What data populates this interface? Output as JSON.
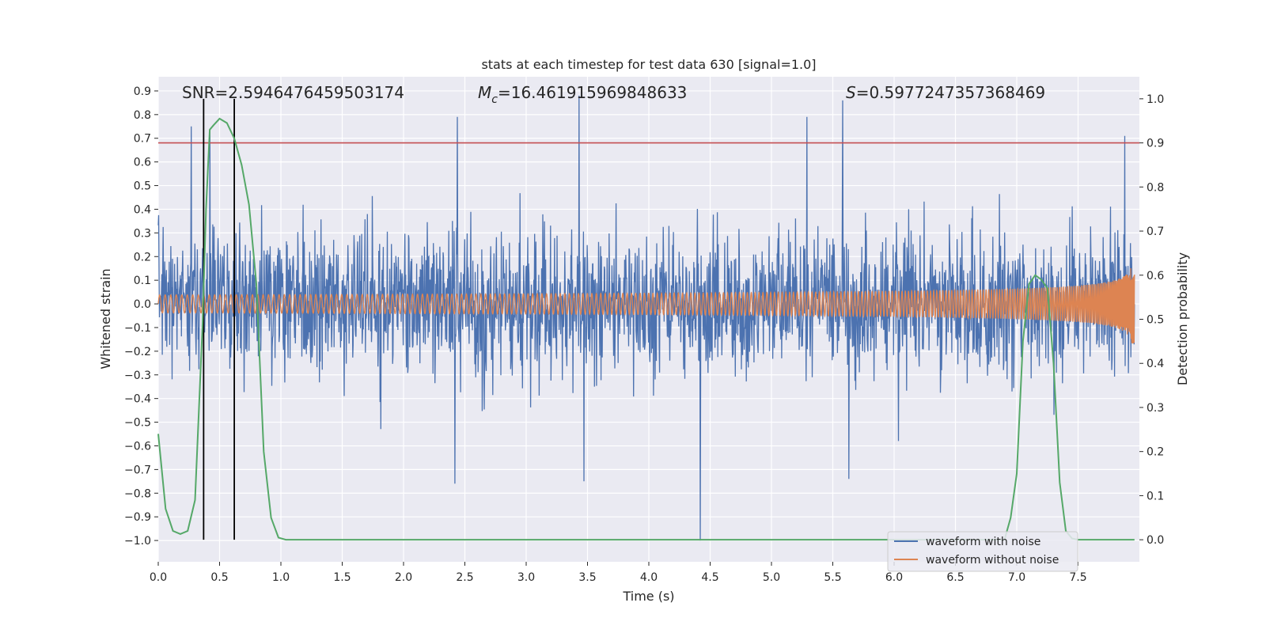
{
  "chart_data": {
    "type": "line",
    "title": "stats at each timestep for test data 630 [signal=1.0]",
    "xlabel": "Time (s)",
    "ylabel_left": "Whitened strain",
    "ylabel_right": "Detection probability",
    "xlim": [
      0.0,
      8.0
    ],
    "ylim_left": [
      -1.09,
      0.96
    ],
    "ylim_right": [
      -0.05,
      1.05
    ],
    "x_ticks": [
      0.0,
      0.5,
      1.0,
      1.5,
      2.0,
      2.5,
      3.0,
      3.5,
      4.0,
      4.5,
      5.0,
      5.5,
      6.0,
      6.5,
      7.0,
      7.5
    ],
    "x_tick_labels": [
      "0.0",
      "0.5",
      "1.0",
      "1.5",
      "2.0",
      "2.5",
      "3.0",
      "3.5",
      "4.0",
      "4.5",
      "5.0",
      "5.5",
      "6.0",
      "6.5",
      "7.0",
      "7.5"
    ],
    "y_left_ticks": [
      -1.0,
      -0.9,
      -0.8,
      -0.7,
      -0.6,
      -0.5,
      -0.4,
      -0.3,
      -0.2,
      -0.1,
      0.0,
      0.1,
      0.2,
      0.3,
      0.4,
      0.5,
      0.6,
      0.7,
      0.8,
      0.9
    ],
    "y_left_tick_labels": [
      "−1.0",
      "−0.9",
      "−0.8",
      "−0.7",
      "−0.6",
      "−0.5",
      "−0.4",
      "−0.3",
      "−0.2",
      "−0.1",
      "0.0",
      "0.1",
      "0.2",
      "0.3",
      "0.4",
      "0.5",
      "0.6",
      "0.7",
      "0.8",
      "0.9"
    ],
    "y_right_ticks": [
      0.0,
      0.1,
      0.2,
      0.3,
      0.4,
      0.5,
      0.6,
      0.7,
      0.8,
      0.9,
      1.0
    ],
    "y_right_tick_labels": [
      "0.0",
      "0.1",
      "0.2",
      "0.3",
      "0.4",
      "0.5",
      "0.6",
      "0.7",
      "0.8",
      "0.9",
      "1.0"
    ],
    "annotations": {
      "snr": "SNR=2.5946476459503174",
      "mc_symbol": "M",
      "mc_sub": "c",
      "mc_value": "=16.461915969848633",
      "s_symbol": "S",
      "s_value": "=0.5977247357368469"
    },
    "threshold": {
      "value": 0.9,
      "axis": "right",
      "color": "#c44e52"
    },
    "vlines": {
      "x": [
        0.37,
        0.62
      ],
      "ymin_right": 0.0,
      "ymax_right": 1.0,
      "color": "#000000"
    },
    "series": [
      {
        "name": "waveform with noise",
        "color": "#4c72b0",
        "axis": "left",
        "kind": "noise",
        "t_range": [
          0.0,
          7.96
        ],
        "noise_sigma": 0.15,
        "spikes": [
          {
            "t": 0.27,
            "y": 0.75
          },
          {
            "t": 0.42,
            "y": 0.73
          },
          {
            "t": 2.44,
            "y": 0.79
          },
          {
            "t": 3.43,
            "y": 0.88
          },
          {
            "t": 4.42,
            "y": -1.0
          },
          {
            "t": 5.29,
            "y": 0.79
          },
          {
            "t": 5.58,
            "y": 0.86
          },
          {
            "t": 7.88,
            "y": 0.71
          },
          {
            "t": 2.42,
            "y": -0.76
          },
          {
            "t": 3.47,
            "y": -0.75
          },
          {
            "t": 5.63,
            "y": -0.74
          }
        ]
      },
      {
        "name": "waveform without noise",
        "color": "#dd8452",
        "axis": "left",
        "kind": "chirp",
        "t_range": [
          0.0,
          7.96
        ],
        "merger_t": 7.94,
        "peak_amplitude": 0.17
      },
      {
        "name": "detection probability",
        "color": "#55a868",
        "axis": "right",
        "kind": "line",
        "x": [
          0.0,
          0.06,
          0.12,
          0.18,
          0.24,
          0.3,
          0.36,
          0.39,
          0.42,
          0.45,
          0.5,
          0.56,
          0.62,
          0.68,
          0.74,
          0.8,
          0.86,
          0.92,
          0.98,
          1.04,
          1.5,
          2.0,
          3.0,
          4.0,
          5.0,
          6.0,
          6.9,
          6.95,
          7.0,
          7.05,
          7.1,
          7.15,
          7.2,
          7.25,
          7.3,
          7.35,
          7.4,
          7.45,
          7.5,
          7.6,
          7.7,
          7.8,
          7.9,
          7.96
        ],
        "y": [
          0.24,
          0.07,
          0.02,
          0.013,
          0.02,
          0.09,
          0.48,
          0.75,
          0.93,
          0.94,
          0.955,
          0.945,
          0.91,
          0.85,
          0.76,
          0.58,
          0.2,
          0.05,
          0.005,
          0.0,
          0.0,
          0.0,
          0.0,
          0.0,
          0.0,
          0.0,
          0.0,
          0.05,
          0.15,
          0.45,
          0.58,
          0.6,
          0.59,
          0.57,
          0.4,
          0.13,
          0.02,
          0.003,
          0.0,
          0.0,
          0.0,
          0.0,
          0.0,
          0.0
        ]
      }
    ],
    "legend": {
      "position": "lower-right",
      "entries": [
        {
          "label": "waveform with noise",
          "color": "#4c72b0"
        },
        {
          "label": "waveform without noise",
          "color": "#dd8452"
        }
      ]
    },
    "grid": true
  }
}
